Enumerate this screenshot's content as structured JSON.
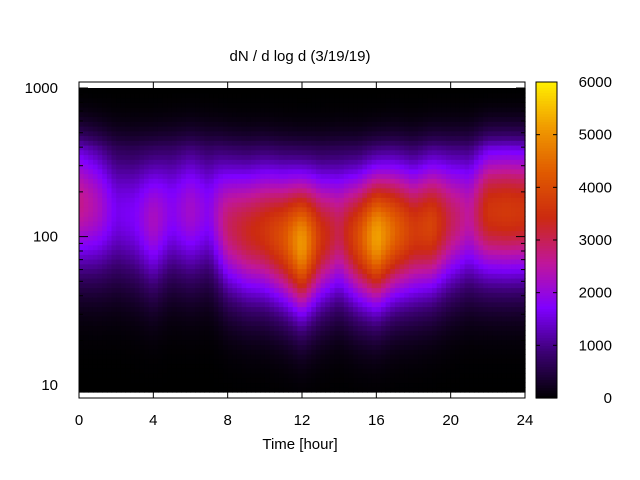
{
  "chart_data": {
    "type": "heatmap",
    "title": "dN / d log d (3/19/19)",
    "xlabel": "Time [hour]",
    "ylabel": "",
    "x_range": [
      0,
      24
    ],
    "x_ticks": [
      0,
      4,
      8,
      12,
      16,
      20,
      24
    ],
    "y_scale": "log",
    "y_range": [
      9,
      1000
    ],
    "y_ticks": [
      10,
      100,
      1000
    ],
    "colorbar": {
      "range": [
        0,
        6000
      ],
      "ticks": [
        0,
        1000,
        2000,
        3000,
        4000,
        5000,
        6000
      ],
      "palette": [
        "#000000",
        "#3a0070",
        "#7f00ff",
        "#c0169b",
        "#cc2a10",
        "#e05a00",
        "#f09a00",
        "#ffee00"
      ]
    },
    "x": [
      0,
      1,
      2,
      3,
      4,
      5,
      6,
      7,
      8,
      9,
      10,
      11,
      12,
      13,
      14,
      15,
      16,
      17,
      18,
      19,
      20,
      21,
      22,
      23,
      24
    ],
    "peak_diameter": [
      170,
      160,
      150,
      140,
      130,
      150,
      150,
      150,
      120,
      110,
      110,
      100,
      90,
      100,
      110,
      100,
      100,
      110,
      110,
      120,
      130,
      140,
      150,
      150,
      150
    ],
    "peak_value": [
      2700,
      2300,
      1600,
      1700,
      2300,
      1800,
      2200,
      1800,
      2900,
      3300,
      3600,
      4100,
      5200,
      3600,
      3000,
      4000,
      5300,
      4400,
      3700,
      3900,
      3000,
      2500,
      3600,
      3700,
      3600
    ],
    "grid": false,
    "legend": "colorbar-right"
  }
}
